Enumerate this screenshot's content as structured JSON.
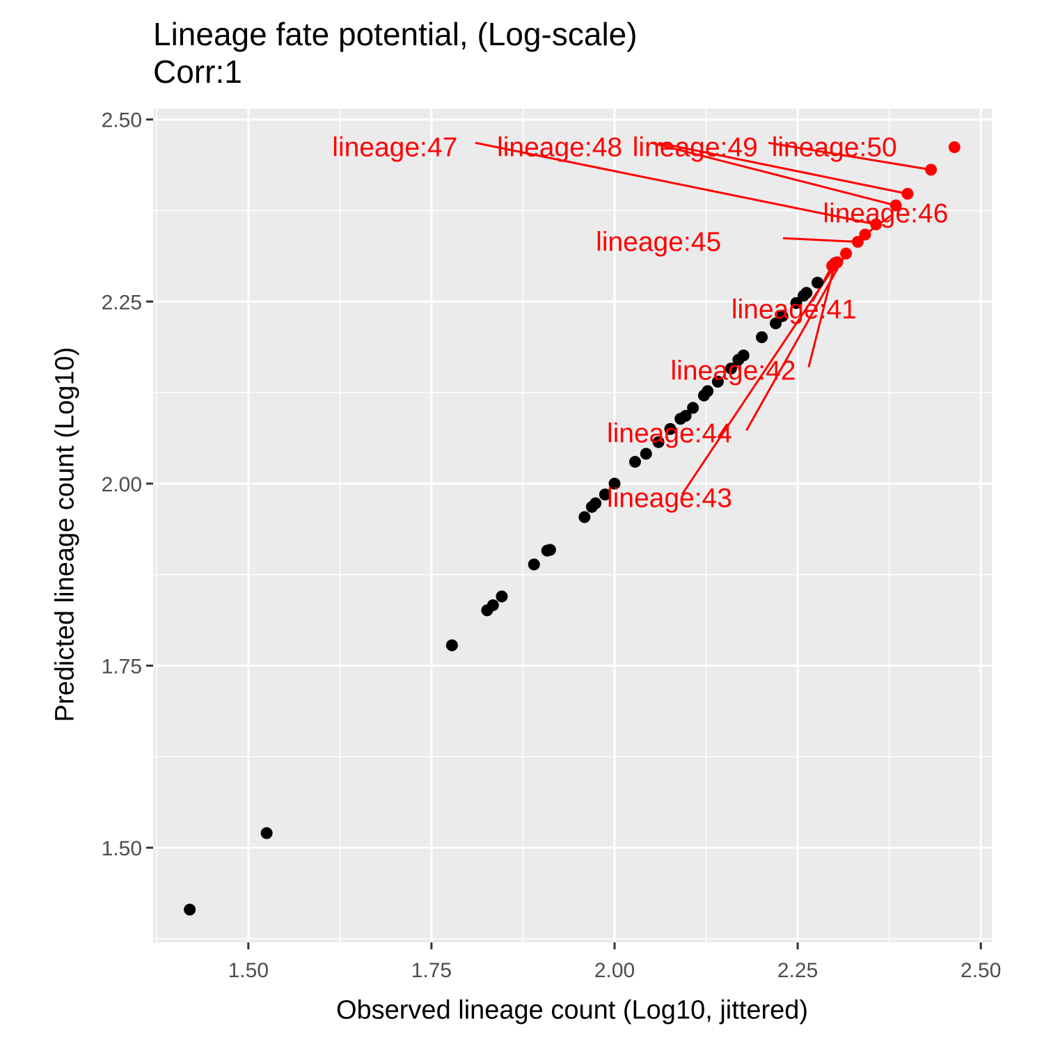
{
  "chart_data": {
    "type": "scatter",
    "title": "Lineage fate potential, (Log-scale)",
    "subtitle": "Corr:1",
    "xlabel": "Observed lineage count (Log10, jittered)",
    "ylabel": "Predicted lineage count (Log10)",
    "xlim": [
      1.37,
      2.515
    ],
    "ylim": [
      1.37,
      2.515
    ],
    "x_ticks": [
      "1.50",
      "1.75",
      "2.00",
      "2.25",
      "2.50"
    ],
    "y_ticks": [
      "1.50",
      "1.75",
      "2.00",
      "2.25",
      "2.50"
    ],
    "grid": true,
    "legend": "none",
    "colors": {
      "panel": "#ebebeb",
      "grid": "#ffffff",
      "default_point": "#000000",
      "highlight": "#ff0000"
    },
    "series": [
      {
        "color": "#000000",
        "points": [
          {
            "x": 1.42,
            "y": 1.415
          },
          {
            "x": 1.525,
            "y": 1.52
          },
          {
            "x": 1.778,
            "y": 1.778
          },
          {
            "x": 1.826,
            "y": 1.826
          },
          {
            "x": 1.834,
            "y": 1.833
          },
          {
            "x": 1.846,
            "y": 1.845
          },
          {
            "x": 1.89,
            "y": 1.889
          },
          {
            "x": 1.908,
            "y": 1.908
          },
          {
            "x": 1.912,
            "y": 1.909
          },
          {
            "x": 1.959,
            "y": 1.954
          },
          {
            "x": 1.969,
            "y": 1.968
          },
          {
            "x": 1.974,
            "y": 1.973
          },
          {
            "x": 1.987,
            "y": 1.985
          },
          {
            "x": 2.0,
            "y": 2.0
          },
          {
            "x": 2.028,
            "y": 2.03
          },
          {
            "x": 2.043,
            "y": 2.041
          },
          {
            "x": 2.06,
            "y": 2.057
          },
          {
            "x": 2.076,
            "y": 2.075
          },
          {
            "x": 2.09,
            "y": 2.089
          },
          {
            "x": 2.097,
            "y": 2.093
          },
          {
            "x": 2.107,
            "y": 2.104
          },
          {
            "x": 2.122,
            "y": 2.121
          },
          {
            "x": 2.127,
            "y": 2.127
          },
          {
            "x": 2.141,
            "y": 2.14
          },
          {
            "x": 2.159,
            "y": 2.158
          },
          {
            "x": 2.169,
            "y": 2.17
          },
          {
            "x": 2.176,
            "y": 2.176
          },
          {
            "x": 2.201,
            "y": 2.201
          },
          {
            "x": 2.22,
            "y": 2.22
          },
          {
            "x": 2.229,
            "y": 2.23
          },
          {
            "x": 2.248,
            "y": 2.248
          },
          {
            "x": 2.258,
            "y": 2.258
          },
          {
            "x": 2.262,
            "y": 2.262
          },
          {
            "x": 2.277,
            "y": 2.276
          }
        ]
      },
      {
        "color": "#ff0000",
        "points": [
          {
            "x": 2.297,
            "y": 2.299,
            "label": "lineage:41"
          },
          {
            "x": 2.301,
            "y": 2.303,
            "label": "lineage:42"
          },
          {
            "x": 2.304,
            "y": 2.304,
            "label": "lineage:43"
          },
          {
            "x": 2.316,
            "y": 2.316,
            "label": "lineage:44"
          },
          {
            "x": 2.332,
            "y": 2.332,
            "label": "lineage:45"
          },
          {
            "x": 2.342,
            "y": 2.342,
            "label": "lineage:46"
          },
          {
            "x": 2.357,
            "y": 2.356,
            "label": "lineage:47"
          },
          {
            "x": 2.384,
            "y": 2.382,
            "label": "lineage:48"
          },
          {
            "x": 2.4,
            "y": 2.398,
            "label": "lineage:49"
          },
          {
            "x": 2.432,
            "y": 2.431,
            "label": "lineage:50"
          },
          {
            "x": 2.464,
            "y": 2.462
          }
        ]
      }
    ],
    "annotations": [
      {
        "text": "lineage:41",
        "x": 2.245,
        "y": 2.24,
        "line_to": [
          2.27,
          2.25
        ]
      },
      {
        "text": "lineage:42",
        "x": 2.162,
        "y": 2.156,
        "line_to": [
          2.265,
          2.16
        ]
      },
      {
        "text": "lineage:43",
        "x": 2.075,
        "y": 1.981,
        "line_to": [
          2.092,
          1.985
        ]
      },
      {
        "text": "lineage:44",
        "x": 2.075,
        "y": 2.07,
        "line_to": [
          2.18,
          2.073
        ]
      },
      {
        "text": "lineage:45",
        "x": 2.06,
        "y": 2.333,
        "line_to": [
          2.23,
          2.337
        ]
      },
      {
        "text": "lineage:46",
        "x": 2.37,
        "y": 2.372,
        "line_to": [
          2.38,
          2.37
        ]
      },
      {
        "text": "lineage:47",
        "x": 1.7,
        "y": 2.463,
        "line_to": [
          1.81,
          2.468
        ]
      },
      {
        "text": "lineage:48",
        "x": 1.925,
        "y": 2.463,
        "line_to": [
          2.05,
          2.468
        ]
      },
      {
        "text": "lineage:49",
        "x": 2.11,
        "y": 2.463,
        "line_to": [
          2.06,
          2.468
        ]
      },
      {
        "text": "lineage:50",
        "x": 2.3,
        "y": 2.463,
        "line_to": [
          2.21,
          2.468
        ]
      }
    ]
  }
}
